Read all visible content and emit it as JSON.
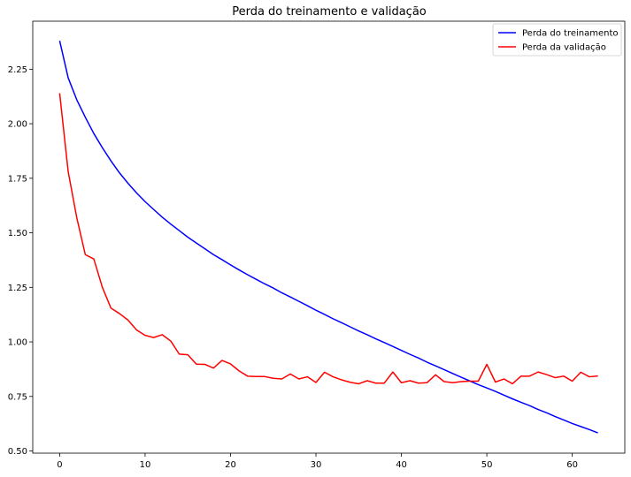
{
  "chart_data": {
    "type": "line",
    "title": "Perda do treinamento e validação",
    "xlabel": "",
    "ylabel": "",
    "xlim": [
      -3.15,
      66.15
    ],
    "ylim": [
      0.49,
      2.47
    ],
    "x_ticks": [
      0,
      10,
      20,
      30,
      40,
      50,
      60
    ],
    "y_ticks": [
      0.5,
      0.75,
      1.0,
      1.25,
      1.5,
      1.75,
      2.0,
      2.25
    ],
    "y_tick_labels": [
      "0.50",
      "0.75",
      "1.00",
      "1.25",
      "1.50",
      "1.75",
      "2.00",
      "2.25"
    ],
    "grid": false,
    "legend_position": "top-right",
    "series": [
      {
        "name": "Perda do treinamento",
        "color": "#0000ff",
        "x": [
          0,
          1,
          2,
          3,
          4,
          5,
          6,
          7,
          8,
          9,
          10,
          11,
          12,
          13,
          14,
          15,
          16,
          17,
          18,
          19,
          20,
          21,
          22,
          23,
          24,
          25,
          26,
          27,
          28,
          29,
          30,
          31,
          32,
          33,
          34,
          35,
          36,
          37,
          38,
          39,
          40,
          41,
          42,
          43,
          44,
          45,
          46,
          47,
          48,
          49,
          50,
          51,
          52,
          53,
          54,
          55,
          56,
          57,
          58,
          59,
          60,
          61,
          62,
          63
        ],
        "values": [
          2.38,
          2.21,
          2.11,
          2.03,
          1.955,
          1.89,
          1.83,
          1.775,
          1.727,
          1.683,
          1.643,
          1.607,
          1.572,
          1.54,
          1.51,
          1.48,
          1.453,
          1.427,
          1.4,
          1.377,
          1.353,
          1.33,
          1.308,
          1.287,
          1.266,
          1.247,
          1.225,
          1.206,
          1.186,
          1.166,
          1.145,
          1.126,
          1.106,
          1.088,
          1.069,
          1.05,
          1.033,
          1.014,
          0.997,
          0.979,
          0.961,
          0.943,
          0.926,
          0.907,
          0.89,
          0.873,
          0.855,
          0.838,
          0.821,
          0.804,
          0.789,
          0.773,
          0.756,
          0.739,
          0.723,
          0.708,
          0.69,
          0.675,
          0.658,
          0.642,
          0.626,
          0.612,
          0.598,
          0.583
        ]
      },
      {
        "name": "Perda da validação",
        "color": "#ff0000",
        "x": [
          0,
          1,
          2,
          3,
          4,
          5,
          6,
          7,
          8,
          9,
          10,
          11,
          12,
          13,
          14,
          15,
          16,
          17,
          18,
          19,
          20,
          21,
          22,
          23,
          24,
          25,
          26,
          27,
          28,
          29,
          30,
          31,
          32,
          33,
          34,
          35,
          36,
          37,
          38,
          39,
          40,
          41,
          42,
          43,
          44,
          45,
          46,
          47,
          48,
          49,
          50,
          51,
          52,
          53,
          54,
          55,
          56,
          57,
          58,
          59,
          60,
          61,
          62,
          63
        ],
        "values": [
          2.14,
          1.78,
          1.57,
          1.4,
          1.38,
          1.25,
          1.155,
          1.13,
          1.1,
          1.055,
          1.03,
          1.02,
          1.033,
          1.004,
          0.944,
          0.941,
          0.898,
          0.897,
          0.88,
          0.915,
          0.899,
          0.867,
          0.843,
          0.841,
          0.841,
          0.833,
          0.83,
          0.853,
          0.83,
          0.84,
          0.814,
          0.861,
          0.84,
          0.826,
          0.815,
          0.808,
          0.822,
          0.811,
          0.811,
          0.862,
          0.813,
          0.822,
          0.811,
          0.813,
          0.849,
          0.818,
          0.813,
          0.818,
          0.82,
          0.82,
          0.897,
          0.816,
          0.83,
          0.808,
          0.843,
          0.843,
          0.862,
          0.85,
          0.836,
          0.843,
          0.82,
          0.861,
          0.84,
          0.844
        ]
      }
    ]
  }
}
